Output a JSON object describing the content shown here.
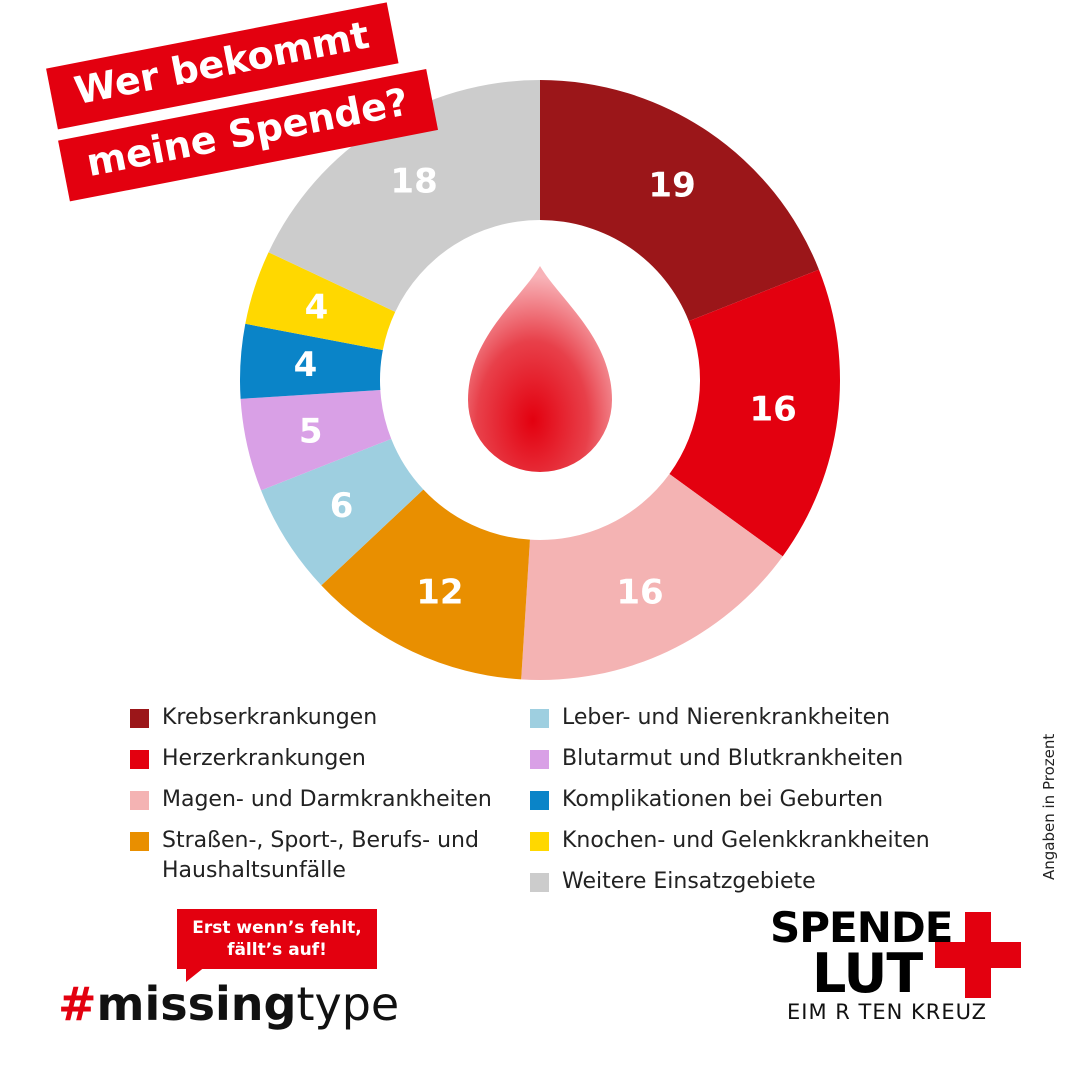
{
  "title": {
    "line1": "Wer bekommt",
    "line2": "meine Spende?"
  },
  "chart_data": {
    "type": "pie",
    "variant": "donut",
    "unit_note": "Angaben in Prozent",
    "categories": [
      "Krebserkrankungen",
      "Herzerkrankungen",
      "Magen- und Darmkrankheiten",
      "Straßen-, Sport-, Berufs- und Haushaltsunfälle",
      "Leber- und Nierenkrankheiten",
      "Blutarmut und Blutkrankheiten",
      "Komplikationen bei Geburten",
      "Knochen- und Gelenkkrankheiten",
      "Weitere Einsatzgebiete"
    ],
    "values": [
      19,
      16,
      16,
      12,
      6,
      5,
      4,
      4,
      18
    ],
    "colors": [
      "#9b1619",
      "#e3000f",
      "#f4b3b3",
      "#e98f00",
      "#9ecfe0",
      "#d9a0e6",
      "#0a84c8",
      "#ffd800",
      "#cccccc"
    ],
    "legend_position": "bottom"
  },
  "legend": {
    "left": [
      {
        "label": "Krebserkrankungen",
        "color": "#9b1619"
      },
      {
        "label": "Herzerkrankungen",
        "color": "#e3000f"
      },
      {
        "label": "Magen- und Darmkrankheiten",
        "color": "#f4b3b3"
      },
      {
        "label": "Straßen-, Sport-, Berufs- und Haushaltsunfälle",
        "color": "#e98f00"
      }
    ],
    "right": [
      {
        "label": "Leber- und Nierenkrankheiten",
        "color": "#9ecfe0"
      },
      {
        "label": "Blutarmut und Blutkrankheiten",
        "color": "#d9a0e6"
      },
      {
        "label": "Komplikationen bei Geburten",
        "color": "#0a84c8"
      },
      {
        "label": "Knochen- und Gelenkkrankheiten",
        "color": "#ffd800"
      },
      {
        "label": "Weitere Einsatzgebiete",
        "color": "#cccccc"
      }
    ]
  },
  "campaign": {
    "bubble_line1": "Erst wenn’s fehlt,",
    "bubble_line2": "fällt’s auf!",
    "hash": "#",
    "hashtag_bold": "missing",
    "hashtag_light": "type"
  },
  "logo": {
    "line1": "SPENDE",
    "line2": "LUT",
    "line3": "EIM R   TEN KREUZ"
  },
  "accent_color": "#e3000f"
}
